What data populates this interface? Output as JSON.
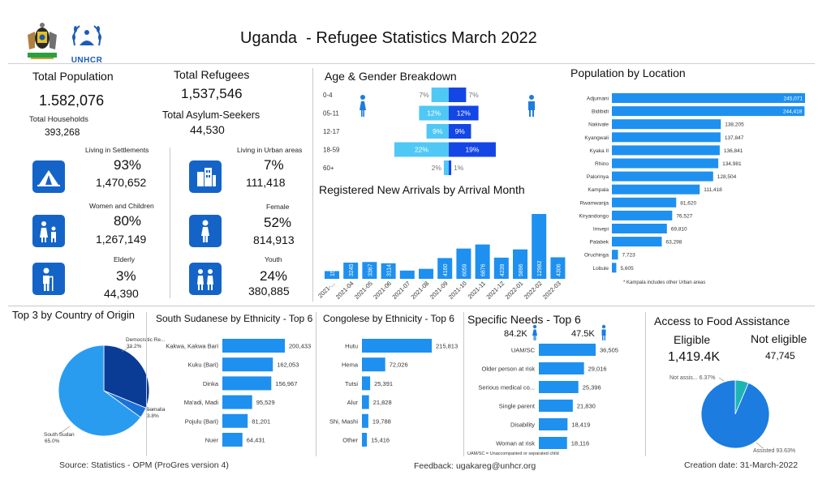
{
  "header": {
    "title": "Uganda  - Refugee Statistics March 2022",
    "unhcr_logo_text": "UNHCR"
  },
  "kpis": {
    "total_population_label": "Total Population",
    "total_population_value": "1.582,076",
    "total_households_label": "Total Households",
    "total_households_value": "393,268",
    "total_refugees_label": "Total Refugees",
    "total_refugees_value": "1,537,546",
    "total_asylum_label": "Total Asylum-Seekers",
    "total_asylum_value": "44,530"
  },
  "stats": {
    "settlements_label": "Living in Settlements",
    "settlements_pct": "93%",
    "settlements_value": "1,470,652",
    "urban_label": "Living in Urban areas",
    "urban_pct": "7%",
    "urban_value": "111,418",
    "women_children_label": "Women and Children",
    "women_children_pct": "80%",
    "women_children_value": "1,267,149",
    "female_label": "Female",
    "female_pct": "52%",
    "female_value": "814,913",
    "elderly_label": "Elderly",
    "elderly_pct": "3%",
    "elderly_value": "44,390",
    "youth_label": "Youth",
    "youth_pct": "24%",
    "youth_value": "380,885"
  },
  "footer": {
    "source": "Source: Statistics - OPM (ProGres version 4)",
    "feedback": "Feedback: ugakareg@unhcr.org",
    "creation": "Creation date: 31-March-2022"
  },
  "colors": {
    "primary_blue": "#1464c8",
    "bar_blue": "#1e90f0",
    "female_light": "#50c8f5",
    "male_dark": "#1446e6",
    "teal": "#1eb4b4"
  },
  "chart_data": [
    {
      "id": "age_gender",
      "type": "bar",
      "title": "Age & Gender Breakdown",
      "categories": [
        "0-4",
        "05-11",
        "12-17",
        "18-59",
        "60+"
      ],
      "series": [
        {
          "name": "Female",
          "values": [
            7,
            12,
            9,
            22,
            2
          ],
          "labels": [
            "7%",
            "12%",
            "9%",
            "22%",
            "2%"
          ]
        },
        {
          "name": "Male",
          "values": [
            7,
            12,
            9,
            19,
            1
          ],
          "labels": [
            "7%",
            "12%",
            "9%",
            "19%",
            "1%"
          ]
        }
      ]
    },
    {
      "id": "arrivals",
      "type": "bar",
      "title": "Registered New Arrivals by Arrival Month",
      "categories": [
        "2021-...",
        "2021-04",
        "2021-05",
        "2021-06",
        "2021-07",
        "2021-08",
        "2021-09",
        "2021-10",
        "2021-11",
        "2021-12",
        "2022-01",
        "2022-02",
        "2022-03"
      ],
      "values": [
        1551,
        3245,
        3367,
        3114,
        1650,
        2000,
        4160,
        6059,
        6876,
        4239,
        5896,
        12982,
        4306
      ],
      "data_labels": [
        "1551",
        "3245",
        "3367",
        "3114",
        "",
        "",
        "4160",
        "6059",
        "6876",
        "4239",
        "5896",
        "12982",
        "4306"
      ]
    },
    {
      "id": "location",
      "type": "bar",
      "title": "Population by Location",
      "categories": [
        "Adjumani",
        "Bidibidi",
        "Nakivale",
        "Kyangwali",
        "Kyaka II",
        "Rhino",
        "Palorinya",
        "Kampala",
        "Rwamwanja",
        "Kiryandongo",
        "Imvepi",
        "Palabek",
        "Oruchinga",
        "Lobule"
      ],
      "values": [
        245071,
        244418,
        138205,
        137847,
        136841,
        134981,
        128504,
        111418,
        81620,
        76527,
        69810,
        63298,
        7723,
        5605
      ],
      "data_labels": [
        "245,071",
        "244,418",
        "138,205",
        "137,847",
        "136,841",
        "134,981",
        "128,504",
        "111,418",
        "81,620",
        "76,527",
        "69,810",
        "63,298",
        "7,723",
        "5,605"
      ],
      "note": "* Kampala includes other Urban areas"
    },
    {
      "id": "country_origin",
      "type": "pie",
      "title": "Top 3 by Country of Origin",
      "categories": [
        "Democratic Re...",
        "Somalia",
        "South Sudan"
      ],
      "values": [
        31.2,
        3.8,
        65.0
      ],
      "labels": [
        "Democratic Re...\n31.2%",
        "Somalia\n3.8%",
        "South Sudan\n65.0%"
      ]
    },
    {
      "id": "south_sudanese",
      "type": "bar",
      "title": "South Sudanese by Ethnicity - Top 6",
      "categories": [
        "Kakwa, Kakwa Bari",
        "Kuku (Bari)",
        "Dinka",
        "Ma'adi, Madi",
        "Pojulu (Bari)",
        "Nuer"
      ],
      "values": [
        200433,
        162053,
        156967,
        95529,
        81201,
        64431
      ],
      "data_labels": [
        "200,433",
        "162,053",
        "156,967",
        "95,529",
        "81,201",
        "64,431"
      ]
    },
    {
      "id": "congolese",
      "type": "bar",
      "title": "Congolese by Ethnicity - Top 6",
      "categories": [
        "Hutu",
        "Hema",
        "Tutsi",
        "Alur",
        "Shi, Mashi",
        "Other"
      ],
      "values": [
        215813,
        72026,
        25391,
        21828,
        19788,
        15416
      ],
      "data_labels": [
        "215,813",
        "72,026",
        "25,391",
        "21,828",
        "19,788",
        "15,416"
      ]
    },
    {
      "id": "specific_needs",
      "type": "bar",
      "title": "Specific Needs - Top 6",
      "female_total": "84.2K",
      "male_total": "47.5K",
      "categories": [
        "UAM/SC",
        "Older person at risk",
        "Serious medical co...",
        "Single parent",
        "Disability",
        "Woman at risk"
      ],
      "values": [
        36505,
        29016,
        25396,
        21830,
        18419,
        18116
      ],
      "data_labels": [
        "36,505",
        "29,016",
        "25,396",
        "21,830",
        "18,419",
        "18,116"
      ],
      "note": "UAM/SC = Unaccompanied or separated child"
    },
    {
      "id": "food",
      "type": "pie",
      "title": "Access to Food Assistance",
      "eligible_label": "Eligible",
      "eligible_value": "1,419.4K",
      "not_eligible_label": "Not eligible",
      "not_eligible_value": "47,745",
      "categories": [
        "Not assis...",
        "Assisted"
      ],
      "values": [
        6.37,
        93.63
      ],
      "labels": [
        "Not assis... 6.37%",
        "Assisted 93.63%"
      ]
    }
  ]
}
